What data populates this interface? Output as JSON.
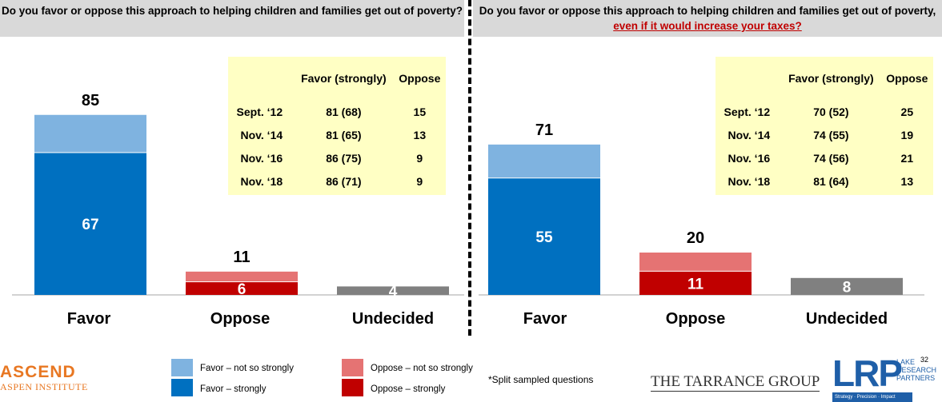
{
  "left_question": "Do you favor or oppose this approach to helping children and families get out of poverty?",
  "right_question": {
    "text": "Do you favor or oppose this approach to helping children and families get out of poverty, ",
    "emphasis": "even if it would increase your taxes?"
  },
  "trend_tables": [
    {
      "headers": [
        "",
        "Favor (strongly)",
        "Oppose"
      ],
      "rows": [
        {
          "date": "Sept. ‘12",
          "favor": "81 (68)",
          "oppose": "15"
        },
        {
          "date": "Nov. ‘14",
          "favor": "81 (65)",
          "oppose": "13"
        },
        {
          "date": "Nov. ‘16",
          "favor": "86 (75)",
          "oppose": "9"
        },
        {
          "date": "Nov. ‘18",
          "favor": "86 (71)",
          "oppose": "9"
        }
      ]
    },
    {
      "headers": [
        "",
        "Favor (strongly)",
        "Oppose"
      ],
      "rows": [
        {
          "date": "Sept. ‘12",
          "favor": "70 (52)",
          "oppose": "25"
        },
        {
          "date": "Nov. ‘14",
          "favor": "74 (55)",
          "oppose": "19"
        },
        {
          "date": "Nov. ‘16",
          "favor": "74 (56)",
          "oppose": "21"
        },
        {
          "date": "Nov. ‘18",
          "favor": "81 (64)",
          "oppose": "13"
        }
      ]
    }
  ],
  "chart_data": [
    {
      "type": "bar",
      "stacked": true,
      "categories": [
        "Favor",
        "Oppose",
        "Undecided"
      ],
      "ylim": [
        0,
        100
      ],
      "bars": [
        {
          "category": "Favor",
          "strong": 67,
          "total": 85,
          "strong_color": "#0070c0",
          "light_color": "#7fb3e0"
        },
        {
          "category": "Oppose",
          "strong": 6,
          "total": 11,
          "strong_color": "#c00000",
          "light_color": "#e57373"
        },
        {
          "category": "Undecided",
          "strong": 4,
          "total": 4,
          "strong_color": "#808080",
          "light_color": "#808080"
        }
      ]
    },
    {
      "type": "bar",
      "stacked": true,
      "categories": [
        "Favor",
        "Oppose",
        "Undecided"
      ],
      "ylim": [
        0,
        100
      ],
      "bars": [
        {
          "category": "Favor",
          "strong": 55,
          "total": 71,
          "strong_color": "#0070c0",
          "light_color": "#7fb3e0"
        },
        {
          "category": "Oppose",
          "strong": 11,
          "total": 20,
          "strong_color": "#c00000",
          "light_color": "#e57373"
        },
        {
          "category": "Undecided",
          "strong": 8,
          "total": 8,
          "strong_color": "#808080",
          "light_color": "#808080"
        }
      ]
    }
  ],
  "legend": [
    {
      "label": "Favor – not so strongly",
      "color": "#7fb3e0"
    },
    {
      "label": "Favor – strongly",
      "color": "#0070c0"
    },
    {
      "label": "Oppose – not so strongly",
      "color": "#e57373"
    },
    {
      "label": "Oppose – strongly",
      "color": "#c00000"
    }
  ],
  "note": "*Split sampled questions",
  "logos": {
    "ascend_line1": "ASCEND",
    "ascend_line2": "ASPEN INSTITUTE",
    "tarrance": "THE TARRANCE GROUP",
    "lrp": "LRP",
    "lrp_small": "LAKE RESEARCH PARTNERS",
    "lrp_strip": "Strategy · Precision · Impact"
  },
  "page_number": "32"
}
